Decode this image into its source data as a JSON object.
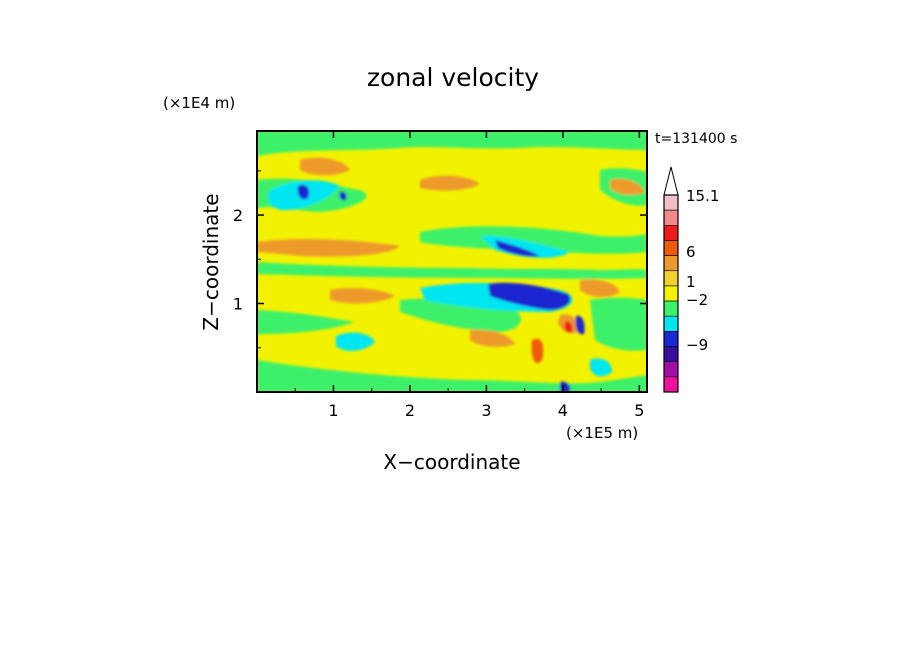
{
  "chart_data": {
    "type": "heatmap",
    "title": "zonal velocity",
    "xlabel": "X−coordinate",
    "ylabel": "Z−coordinate",
    "x_unit": "(×1E5 m)",
    "y_unit": "(×1E4 m)",
    "time_label": "t=131400 s",
    "xlim": [
      0,
      5.1
    ],
    "ylim": [
      0,
      2.95
    ],
    "x_ticks": [
      {
        "value": 1,
        "label": "1"
      },
      {
        "value": 2,
        "label": "2"
      },
      {
        "value": 3,
        "label": "3"
      },
      {
        "value": 4,
        "label": "4"
      },
      {
        "value": 5,
        "label": "5"
      }
    ],
    "y_ticks": [
      {
        "value": 1,
        "label": "1"
      },
      {
        "value": 2,
        "label": "2"
      }
    ],
    "colorbar": {
      "labels": [
        "15.1",
        "6",
        "1",
        "−2",
        "−9"
      ],
      "label_levels": [
        15.1,
        6,
        1,
        -2,
        -9
      ],
      "bands": [
        {
          "color": "#f0bfc4"
        },
        {
          "color": "#f28a8a"
        },
        {
          "color": "#ee1c1c"
        },
        {
          "color": "#f05a0c"
        },
        {
          "color": "#ee9a2a"
        },
        {
          "color": "#f2d030"
        },
        {
          "color": "#f2f200"
        },
        {
          "color": "#3cf06a"
        },
        {
          "color": "#00e6f0"
        },
        {
          "color": "#1a28d0"
        },
        {
          "color": "#3a0ca0"
        },
        {
          "color": "#a010a8"
        },
        {
          "color": "#f010a0"
        }
      ]
    }
  }
}
